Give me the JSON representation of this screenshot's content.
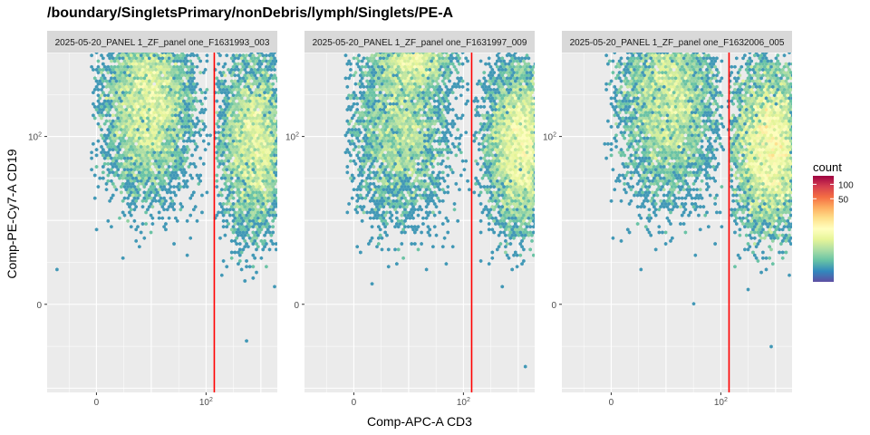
{
  "chart_data": {
    "type": "heatmap",
    "title": "/boundary/SingletsPrimary/nonDebris/lymph/Singlets/PE-A",
    "xlabel": "Comp-APC-A CD3",
    "ylabel": "Comp-PE-Cy7-A CD19",
    "x_ticks": [
      {
        "v": 0,
        "label": "0"
      },
      {
        "v": 2,
        "label": "10",
        "sup": "2"
      }
    ],
    "y_ticks": [
      {
        "v": 0,
        "label": "0"
      },
      {
        "v": 2,
        "label": "10",
        "sup": "2"
      }
    ],
    "x_scale": "logicle",
    "y_scale": "logicle",
    "xlim": [
      -0.9,
      3.3
    ],
    "ylim": [
      -1.05,
      3.0
    ],
    "gate_x": 2.15,
    "gate_color": "#ff0000",
    "legend": {
      "title": "count",
      "ticks": [
        {
          "v": 50,
          "label": "50"
        },
        {
          "v": 100,
          "label": "100"
        }
      ],
      "max": 150,
      "placement": "right"
    },
    "colormap": [
      "#5e4fa2",
      "#3288bd",
      "#66c2a5",
      "#abdda4",
      "#e6f598",
      "#ffffbf",
      "#fee08b",
      "#fdae61",
      "#f46d43",
      "#d53e4f",
      "#9e0142"
    ],
    "panels": [
      {
        "strip": "2025-05-20_PANEL 1_ZF_panel one_F1631993_003",
        "populations": [
          {
            "cx": 0.95,
            "cy": 2.4,
            "sx": 0.42,
            "sy": 0.55,
            "n": 5500,
            "xmin": -0.1,
            "xmax": 2.05,
            "ymin": 0.35,
            "ymax": 3.55
          },
          {
            "cx": 2.88,
            "cy": 1.92,
            "sx": 0.32,
            "sy": 0.55,
            "n": 4200,
            "xmin": 2.18,
            "xmax": 3.45,
            "ymin": 0.12,
            "ymax": 3.3
          }
        ],
        "outliers": [
          [
            -0.72,
            0.42
          ],
          [
            2.72,
            -0.45
          ]
        ]
      },
      {
        "strip": "2025-05-20_PANEL 1_ZF_panel one_F1631997_009",
        "populations": [
          {
            "cx": 1.1,
            "cy": 3.02,
            "sx": 0.35,
            "sy": 0.22,
            "n": 2200,
            "xmin": -0.05,
            "xmax": 2.1,
            "ymin": 0.35,
            "ymax": 3.55
          },
          {
            "cx": 0.85,
            "cy": 2.1,
            "sx": 0.45,
            "sy": 0.55,
            "n": 3600,
            "xmin": -0.15,
            "xmax": 2.1,
            "ymin": 0.2,
            "ymax": 3.55
          },
          {
            "cx": 3.05,
            "cy": 1.9,
            "sx": 0.32,
            "sy": 0.5,
            "n": 5200,
            "xmin": 2.18,
            "xmax": 3.7,
            "ymin": 0.15,
            "ymax": 3.3
          }
        ],
        "outliers": [
          [
            3.15,
            -0.75
          ],
          [
            3.85,
            2.0
          ]
        ]
      },
      {
        "strip": "2025-05-20_PANEL 1_ZF_panel one_F1632006_005",
        "populations": [
          {
            "cx": 1.05,
            "cy": 2.45,
            "sx": 0.45,
            "sy": 0.6,
            "n": 5200,
            "xmin": -0.1,
            "xmax": 2.05,
            "ymin": 0.35,
            "ymax": 3.55
          },
          {
            "cx": 2.9,
            "cy": 1.88,
            "sx": 0.34,
            "sy": 0.5,
            "n": 6500,
            "xmin": 2.15,
            "xmax": 3.55,
            "ymin": 0.0,
            "ymax": 3.35
          }
        ],
        "outliers": [
          [
            2.92,
            -0.5
          ],
          [
            1.5,
            0.02
          ],
          [
            3.4,
            2.1
          ]
        ]
      }
    ]
  }
}
